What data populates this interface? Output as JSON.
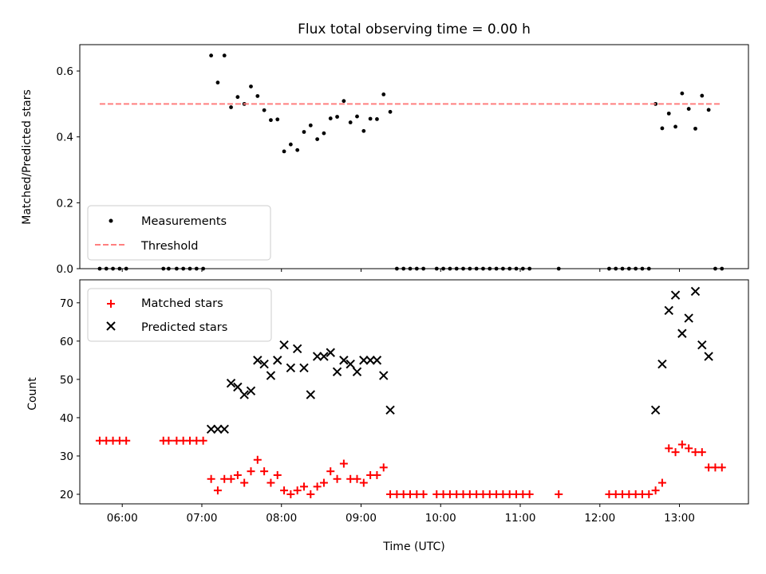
{
  "chart_data": [
    {
      "type": "scatter",
      "title": "Flux total observing time = 0.00 h",
      "ylabel": "Matched/Predicted stars",
      "xlabel": "",
      "ylim": [
        0,
        0.68
      ],
      "xlim": [
        "05:28",
        "13:52"
      ],
      "yticks": [
        "0.0",
        "0.2",
        "0.4",
        "0.6"
      ],
      "xticks": [
        "06:00",
        "07:00",
        "08:00",
        "09:00",
        "10:00",
        "11:00",
        "12:00",
        "13:00"
      ],
      "legend": {
        "placement": "lower-left",
        "entries": [
          "Measurements",
          "Threshold"
        ]
      },
      "series": [
        {
          "name": "Measurements",
          "color": "#000000",
          "marker": "dot",
          "points": [
            [
              "05:43",
              0
            ],
            [
              "05:48",
              0
            ],
            [
              "05:53",
              0
            ],
            [
              "05:58",
              0
            ],
            [
              "06:03",
              0
            ],
            [
              "06:31",
              0
            ],
            [
              "06:35",
              0
            ],
            [
              "06:41",
              0
            ],
            [
              "06:46",
              0
            ],
            [
              "06:51",
              0
            ],
            [
              "06:56",
              0
            ],
            [
              "07:01",
              0
            ],
            [
              "07:07",
              0.647
            ],
            [
              "07:12",
              0.565
            ],
            [
              "07:17",
              0.647
            ],
            [
              "07:22",
              0.49
            ],
            [
              "07:27",
              0.521
            ],
            [
              "07:32",
              0.5
            ],
            [
              "07:37",
              0.553
            ],
            [
              "07:42",
              0.524
            ],
            [
              "07:47",
              0.481
            ],
            [
              "07:52",
              0.451
            ],
            [
              "07:57",
              0.453
            ],
            [
              "08:02",
              0.356
            ],
            [
              "08:07",
              0.377
            ],
            [
              "08:12",
              0.36
            ],
            [
              "08:17",
              0.415
            ],
            [
              "08:22",
              0.435
            ],
            [
              "08:27",
              0.393
            ],
            [
              "08:32",
              0.411
            ],
            [
              "08:37",
              0.456
            ],
            [
              "08:42",
              0.461
            ],
            [
              "08:47",
              0.509
            ],
            [
              "08:52",
              0.444
            ],
            [
              "08:57",
              0.462
            ],
            [
              "09:02",
              0.418
            ],
            [
              "09:07",
              0.455
            ],
            [
              "09:12",
              0.454
            ],
            [
              "09:17",
              0.529
            ],
            [
              "09:22",
              0.476
            ],
            [
              "09:27",
              0
            ],
            [
              "09:32",
              0
            ],
            [
              "09:37",
              0
            ],
            [
              "09:42",
              0
            ],
            [
              "09:47",
              0
            ],
            [
              "09:57",
              0
            ],
            [
              "10:02",
              0
            ],
            [
              "10:07",
              0
            ],
            [
              "10:12",
              0
            ],
            [
              "10:17",
              0
            ],
            [
              "10:22",
              0
            ],
            [
              "10:27",
              0
            ],
            [
              "10:32",
              0
            ],
            [
              "10:37",
              0
            ],
            [
              "10:42",
              0
            ],
            [
              "10:47",
              0
            ],
            [
              "10:52",
              0
            ],
            [
              "10:57",
              0
            ],
            [
              "11:02",
              0
            ],
            [
              "11:07",
              0
            ],
            [
              "11:29",
              0
            ],
            [
              "12:07",
              0
            ],
            [
              "12:12",
              0
            ],
            [
              "12:17",
              0
            ],
            [
              "12:22",
              0
            ],
            [
              "12:27",
              0
            ],
            [
              "12:32",
              0
            ],
            [
              "12:37",
              0
            ],
            [
              "12:42",
              0.5
            ],
            [
              "12:47",
              0.426
            ],
            [
              "12:52",
              0.471
            ],
            [
              "12:57",
              0.431
            ],
            [
              "13:02",
              0.532
            ],
            [
              "13:07",
              0.485
            ],
            [
              "13:12",
              0.425
            ],
            [
              "13:17",
              0.525
            ],
            [
              "13:22",
              0.482
            ],
            [
              "13:27",
              0
            ],
            [
              "13:32",
              0
            ]
          ]
        },
        {
          "name": "Threshold",
          "color": "#ff7f7f",
          "line": "dashed",
          "x": [
            "05:43",
            "13:32"
          ],
          "y": [
            0.5,
            0.5
          ]
        }
      ]
    },
    {
      "type": "scatter",
      "title": "",
      "xlabel": "Time (UTC)",
      "ylabel": "Count",
      "ylim": [
        17.5,
        76
      ],
      "xlim": [
        "05:28",
        "13:52"
      ],
      "yticks": [
        "20",
        "30",
        "40",
        "50",
        "60",
        "70"
      ],
      "xticks": [
        "06:00",
        "07:00",
        "08:00",
        "09:00",
        "10:00",
        "11:00",
        "12:00",
        "13:00"
      ],
      "legend": {
        "placement": "upper-left",
        "entries": [
          "Matched stars",
          "Predicted stars"
        ]
      },
      "series": [
        {
          "name": "Matched stars",
          "color": "#ff0000",
          "marker": "plus",
          "points": [
            [
              "05:43",
              34
            ],
            [
              "05:48",
              34
            ],
            [
              "05:53",
              34
            ],
            [
              "05:58",
              34
            ],
            [
              "06:03",
              34
            ],
            [
              "06:31",
              34
            ],
            [
              "06:35",
              34
            ],
            [
              "06:41",
              34
            ],
            [
              "06:46",
              34
            ],
            [
              "06:51",
              34
            ],
            [
              "06:56",
              34
            ],
            [
              "07:01",
              34
            ],
            [
              "07:07",
              24
            ],
            [
              "07:12",
              21
            ],
            [
              "07:17",
              24
            ],
            [
              "07:22",
              24
            ],
            [
              "07:27",
              25
            ],
            [
              "07:32",
              23
            ],
            [
              "07:37",
              26
            ],
            [
              "07:42",
              29
            ],
            [
              "07:47",
              26
            ],
            [
              "07:52",
              23
            ],
            [
              "07:57",
              25
            ],
            [
              "08:02",
              21
            ],
            [
              "08:07",
              20
            ],
            [
              "08:12",
              21
            ],
            [
              "08:17",
              22
            ],
            [
              "08:22",
              20
            ],
            [
              "08:27",
              22
            ],
            [
              "08:32",
              23
            ],
            [
              "08:37",
              26
            ],
            [
              "08:42",
              24
            ],
            [
              "08:47",
              28
            ],
            [
              "08:52",
              24
            ],
            [
              "08:57",
              24
            ],
            [
              "09:02",
              23
            ],
            [
              "09:07",
              25
            ],
            [
              "09:12",
              25
            ],
            [
              "09:17",
              27
            ],
            [
              "09:22",
              20
            ],
            [
              "09:27",
              20
            ],
            [
              "09:32",
              20
            ],
            [
              "09:37",
              20
            ],
            [
              "09:42",
              20
            ],
            [
              "09:47",
              20
            ],
            [
              "09:57",
              20
            ],
            [
              "10:02",
              20
            ],
            [
              "10:07",
              20
            ],
            [
              "10:12",
              20
            ],
            [
              "10:17",
              20
            ],
            [
              "10:22",
              20
            ],
            [
              "10:27",
              20
            ],
            [
              "10:32",
              20
            ],
            [
              "10:37",
              20
            ],
            [
              "10:42",
              20
            ],
            [
              "10:47",
              20
            ],
            [
              "10:52",
              20
            ],
            [
              "10:57",
              20
            ],
            [
              "11:02",
              20
            ],
            [
              "11:07",
              20
            ],
            [
              "11:29",
              20
            ],
            [
              "12:07",
              20
            ],
            [
              "12:12",
              20
            ],
            [
              "12:17",
              20
            ],
            [
              "12:22",
              20
            ],
            [
              "12:27",
              20
            ],
            [
              "12:32",
              20
            ],
            [
              "12:37",
              20
            ],
            [
              "12:42",
              21
            ],
            [
              "12:47",
              23
            ],
            [
              "12:52",
              32
            ],
            [
              "12:57",
              31
            ],
            [
              "13:02",
              33
            ],
            [
              "13:07",
              32
            ],
            [
              "13:12",
              31
            ],
            [
              "13:17",
              31
            ],
            [
              "13:22",
              27
            ],
            [
              "13:27",
              27
            ],
            [
              "13:32",
              27
            ]
          ]
        },
        {
          "name": "Predicted stars",
          "color": "#000000",
          "marker": "x",
          "points": [
            [
              "07:07",
              37
            ],
            [
              "07:12",
              37
            ],
            [
              "07:17",
              37
            ],
            [
              "07:22",
              49
            ],
            [
              "07:27",
              48
            ],
            [
              "07:32",
              46
            ],
            [
              "07:37",
              47
            ],
            [
              "07:42",
              55
            ],
            [
              "07:47",
              54
            ],
            [
              "07:52",
              51
            ],
            [
              "07:57",
              55
            ],
            [
              "08:02",
              59
            ],
            [
              "08:07",
              53
            ],
            [
              "08:12",
              58
            ],
            [
              "08:17",
              53
            ],
            [
              "08:22",
              46
            ],
            [
              "08:27",
              56
            ],
            [
              "08:32",
              56
            ],
            [
              "08:37",
              57
            ],
            [
              "08:42",
              52
            ],
            [
              "08:47",
              55
            ],
            [
              "08:52",
              54
            ],
            [
              "08:57",
              52
            ],
            [
              "09:02",
              55
            ],
            [
              "09:07",
              55
            ],
            [
              "09:12",
              55
            ],
            [
              "09:17",
              51
            ],
            [
              "09:22",
              42
            ],
            [
              "12:42",
              42
            ],
            [
              "12:47",
              54
            ],
            [
              "12:52",
              68
            ],
            [
              "12:57",
              72
            ],
            [
              "13:02",
              62
            ],
            [
              "13:07",
              66
            ],
            [
              "13:12",
              73
            ],
            [
              "13:17",
              59
            ],
            [
              "13:22",
              56
            ]
          ]
        }
      ]
    }
  ]
}
